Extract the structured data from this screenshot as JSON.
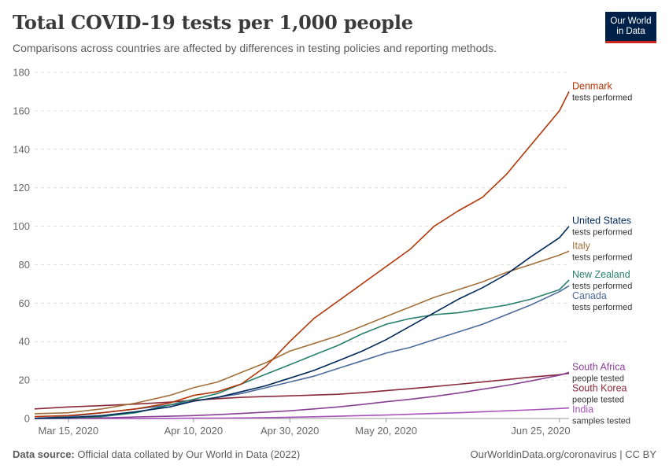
{
  "header": {
    "title": "Total COVID-19 tests per 1,000 people",
    "subtitle": "Comparisons across countries are affected by differences in testing policies and reporting methods."
  },
  "logo": {
    "line1": "Our World",
    "line2": "in Data"
  },
  "footer": {
    "source_label": "Data source:",
    "source_text": "Official data collated by Our World in Data (2022)",
    "credit": "OurWorldinData.org/coronavirus | CC BY"
  },
  "chart_data": {
    "type": "line",
    "title": "Total COVID-19 tests per 1,000 people",
    "subtitle": "Comparisons across countries are affected by differences in testing policies and reporting methods.",
    "ylim": [
      0,
      180
    ],
    "xlim": [
      "2020-03-08",
      "2020-06-27"
    ],
    "y_ticks": [
      0,
      20,
      40,
      60,
      80,
      100,
      120,
      140,
      160,
      180
    ],
    "x_ticks": [
      {
        "date": "2020-03-15",
        "label": "Mar 15, 2020"
      },
      {
        "date": "2020-04-10",
        "label": "Apr 10, 2020"
      },
      {
        "date": "2020-04-30",
        "label": "Apr 30, 2020"
      },
      {
        "date": "2020-05-20",
        "label": "May 20, 2020"
      },
      {
        "date": "2020-06-25",
        "label": "Jun 25, 2020"
      }
    ],
    "grid": "horizontal dashed",
    "series": [
      {
        "name": "Denmark",
        "sublabel": "tests performed",
        "color": "#b13507",
        "points": [
          [
            "2020-03-08",
            1
          ],
          [
            "2020-03-15",
            1.5
          ],
          [
            "2020-03-22",
            3
          ],
          [
            "2020-03-29",
            5
          ],
          [
            "2020-04-05",
            8
          ],
          [
            "2020-04-10",
            12
          ],
          [
            "2020-04-15",
            14
          ],
          [
            "2020-04-20",
            18
          ],
          [
            "2020-04-25",
            27
          ],
          [
            "2020-04-30",
            40
          ],
          [
            "2020-05-05",
            52
          ],
          [
            "2020-05-10",
            61
          ],
          [
            "2020-05-15",
            70
          ],
          [
            "2020-05-20",
            79
          ],
          [
            "2020-05-25",
            88
          ],
          [
            "2020-05-30",
            100
          ],
          [
            "2020-06-04",
            108
          ],
          [
            "2020-06-09",
            115
          ],
          [
            "2020-06-14",
            127
          ],
          [
            "2020-06-19",
            142
          ],
          [
            "2020-06-25",
            160
          ],
          [
            "2020-06-27",
            170
          ]
        ]
      },
      {
        "name": "United States",
        "sublabel": "tests performed",
        "color": "#00295b",
        "points": [
          [
            "2020-03-08",
            0.1
          ],
          [
            "2020-03-15",
            0.5
          ],
          [
            "2020-03-22",
            1.5
          ],
          [
            "2020-03-29",
            3.5
          ],
          [
            "2020-04-05",
            6
          ],
          [
            "2020-04-10",
            9
          ],
          [
            "2020-04-15",
            11
          ],
          [
            "2020-04-20",
            14
          ],
          [
            "2020-04-25",
            17
          ],
          [
            "2020-04-30",
            21
          ],
          [
            "2020-05-05",
            25
          ],
          [
            "2020-05-10",
            30
          ],
          [
            "2020-05-15",
            35
          ],
          [
            "2020-05-20",
            41
          ],
          [
            "2020-05-25",
            48
          ],
          [
            "2020-05-30",
            55
          ],
          [
            "2020-06-04",
            62
          ],
          [
            "2020-06-09",
            68
          ],
          [
            "2020-06-14",
            75
          ],
          [
            "2020-06-19",
            84
          ],
          [
            "2020-06-25",
            94
          ],
          [
            "2020-06-27",
            100
          ]
        ]
      },
      {
        "name": "Italy",
        "sublabel": "tests performed",
        "color": "#a2703a",
        "points": [
          [
            "2020-03-08",
            2.5
          ],
          [
            "2020-03-15",
            3
          ],
          [
            "2020-03-22",
            5
          ],
          [
            "2020-03-29",
            8
          ],
          [
            "2020-04-05",
            12
          ],
          [
            "2020-04-10",
            16
          ],
          [
            "2020-04-15",
            19
          ],
          [
            "2020-04-20",
            24
          ],
          [
            "2020-04-25",
            29
          ],
          [
            "2020-04-30",
            35
          ],
          [
            "2020-05-05",
            39
          ],
          [
            "2020-05-10",
            43
          ],
          [
            "2020-05-15",
            48
          ],
          [
            "2020-05-20",
            53
          ],
          [
            "2020-05-25",
            58
          ],
          [
            "2020-05-30",
            63
          ],
          [
            "2020-06-04",
            67
          ],
          [
            "2020-06-09",
            71
          ],
          [
            "2020-06-14",
            76
          ],
          [
            "2020-06-19",
            80
          ],
          [
            "2020-06-25",
            85
          ],
          [
            "2020-06-27",
            87
          ]
        ]
      },
      {
        "name": "New Zealand",
        "sublabel": "tests performed",
        "color": "#27806b",
        "points": [
          [
            "2020-03-08",
            0.1
          ],
          [
            "2020-03-15",
            0.3
          ],
          [
            "2020-03-22",
            1
          ],
          [
            "2020-03-29",
            3
          ],
          [
            "2020-04-05",
            7
          ],
          [
            "2020-04-10",
            10
          ],
          [
            "2020-04-15",
            13
          ],
          [
            "2020-04-20",
            18
          ],
          [
            "2020-04-25",
            23
          ],
          [
            "2020-04-30",
            28
          ],
          [
            "2020-05-05",
            33
          ],
          [
            "2020-05-10",
            38
          ],
          [
            "2020-05-15",
            44
          ],
          [
            "2020-05-20",
            49
          ],
          [
            "2020-05-25",
            52
          ],
          [
            "2020-05-30",
            54
          ],
          [
            "2020-06-04",
            55
          ],
          [
            "2020-06-09",
            57
          ],
          [
            "2020-06-14",
            59
          ],
          [
            "2020-06-19",
            62
          ],
          [
            "2020-06-25",
            67
          ],
          [
            "2020-06-27",
            72
          ]
        ]
      },
      {
        "name": "Canada",
        "sublabel": "tests performed",
        "color": "#4c6a9c",
        "points": [
          [
            "2020-03-08",
            0.1
          ],
          [
            "2020-03-15",
            1
          ],
          [
            "2020-03-22",
            3
          ],
          [
            "2020-03-29",
            5
          ],
          [
            "2020-04-05",
            7
          ],
          [
            "2020-04-10",
            9
          ],
          [
            "2020-04-15",
            11
          ],
          [
            "2020-04-20",
            13
          ],
          [
            "2020-04-25",
            16
          ],
          [
            "2020-04-30",
            19
          ],
          [
            "2020-05-05",
            22
          ],
          [
            "2020-05-10",
            26
          ],
          [
            "2020-05-15",
            30
          ],
          [
            "2020-05-20",
            34
          ],
          [
            "2020-05-25",
            37
          ],
          [
            "2020-05-30",
            41
          ],
          [
            "2020-06-04",
            45
          ],
          [
            "2020-06-09",
            49
          ],
          [
            "2020-06-14",
            54
          ],
          [
            "2020-06-19",
            59
          ],
          [
            "2020-06-25",
            66
          ],
          [
            "2020-06-27",
            69
          ]
        ]
      },
      {
        "name": "South Africa",
        "sublabel": "people tested",
        "color": "#883f94",
        "points": [
          [
            "2020-03-08",
            0
          ],
          [
            "2020-03-15",
            0.1
          ],
          [
            "2020-03-22",
            0.3
          ],
          [
            "2020-03-29",
            0.8
          ],
          [
            "2020-04-05",
            1.2
          ],
          [
            "2020-04-10",
            1.5
          ],
          [
            "2020-04-15",
            2
          ],
          [
            "2020-04-20",
            2.6
          ],
          [
            "2020-04-25",
            3.3
          ],
          [
            "2020-04-30",
            4
          ],
          [
            "2020-05-05",
            5
          ],
          [
            "2020-05-10",
            6
          ],
          [
            "2020-05-15",
            7.3
          ],
          [
            "2020-05-20",
            8.7
          ],
          [
            "2020-05-25",
            10
          ],
          [
            "2020-05-30",
            11.5
          ],
          [
            "2020-06-04",
            13.2
          ],
          [
            "2020-06-09",
            15.2
          ],
          [
            "2020-06-14",
            17.2
          ],
          [
            "2020-06-19",
            19.5
          ],
          [
            "2020-06-25",
            22.5
          ],
          [
            "2020-06-27",
            24
          ]
        ]
      },
      {
        "name": "South Korea",
        "sublabel": "people tested",
        "color": "#882839",
        "points": [
          [
            "2020-03-08",
            5
          ],
          [
            "2020-03-15",
            6
          ],
          [
            "2020-03-22",
            6.7
          ],
          [
            "2020-03-29",
            7.5
          ],
          [
            "2020-04-05",
            8.5
          ],
          [
            "2020-04-10",
            9.5
          ],
          [
            "2020-04-15",
            10.3
          ],
          [
            "2020-04-20",
            11
          ],
          [
            "2020-04-25",
            11.4
          ],
          [
            "2020-04-30",
            11.8
          ],
          [
            "2020-05-05",
            12.2
          ],
          [
            "2020-05-10",
            12.6
          ],
          [
            "2020-05-15",
            13.4
          ],
          [
            "2020-05-20",
            14.5
          ],
          [
            "2020-05-25",
            15.5
          ],
          [
            "2020-05-30",
            16.6
          ],
          [
            "2020-06-04",
            17.8
          ],
          [
            "2020-06-09",
            19
          ],
          [
            "2020-06-14",
            20.2
          ],
          [
            "2020-06-19",
            21.5
          ],
          [
            "2020-06-25",
            22.8
          ],
          [
            "2020-06-27",
            23.5
          ]
        ]
      },
      {
        "name": "India",
        "sublabel": "samples tested",
        "color": "#a652ba",
        "points": [
          [
            "2020-03-08",
            0
          ],
          [
            "2020-03-15",
            0.01
          ],
          [
            "2020-03-22",
            0.02
          ],
          [
            "2020-03-29",
            0.04
          ],
          [
            "2020-04-05",
            0.1
          ],
          [
            "2020-04-10",
            0.15
          ],
          [
            "2020-04-15",
            0.2
          ],
          [
            "2020-04-20",
            0.3
          ],
          [
            "2020-04-25",
            0.45
          ],
          [
            "2020-04-30",
            0.65
          ],
          [
            "2020-05-05",
            0.9
          ],
          [
            "2020-05-10",
            1.2
          ],
          [
            "2020-05-15",
            1.5
          ],
          [
            "2020-05-20",
            1.8
          ],
          [
            "2020-05-25",
            2.2
          ],
          [
            "2020-05-30",
            2.6
          ],
          [
            "2020-06-04",
            3
          ],
          [
            "2020-06-09",
            3.5
          ],
          [
            "2020-06-14",
            4
          ],
          [
            "2020-06-19",
            4.5
          ],
          [
            "2020-06-25",
            5.2
          ],
          [
            "2020-06-27",
            5.5
          ]
        ]
      }
    ]
  }
}
